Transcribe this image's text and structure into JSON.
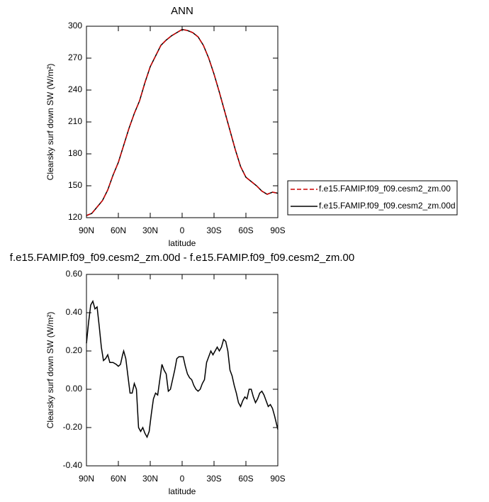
{
  "chart_data": [
    {
      "type": "line",
      "title": "ANN",
      "x_label": "latitude",
      "y_label": "Clearsky surf down SW (W/m²)",
      "xlim": [
        90,
        -90
      ],
      "xticks": [
        {
          "value": 90,
          "label": "90N"
        },
        {
          "value": 60,
          "label": "60N"
        },
        {
          "value": 30,
          "label": "30N"
        },
        0,
        {
          "value": -30,
          "label": "30S"
        },
        {
          "value": -60,
          "label": "60S"
        },
        {
          "value": -90,
          "label": "90S"
        }
      ],
      "ylim": [
        120,
        300
      ],
      "yticks": [
        120,
        150,
        180,
        210,
        240,
        270,
        300
      ],
      "legend": "right",
      "x": [
        90,
        85,
        80,
        75,
        70,
        65,
        60,
        55,
        50,
        45,
        40,
        35,
        30,
        25,
        20,
        15,
        10,
        5,
        0,
        -5,
        -10,
        -15,
        -20,
        -25,
        -30,
        -35,
        -40,
        -45,
        -50,
        -55,
        -60,
        -65,
        -70,
        -75,
        -80,
        -85,
        -90
      ],
      "series": [
        {
          "name": "f.e15.FAMIP.f09_f09.cesm2_zm.00",
          "color": "#cc0000",
          "dashed": true,
          "values": [
            122,
            124,
            130,
            136,
            146,
            160,
            172,
            188,
            204,
            218,
            230,
            247,
            262,
            272,
            282,
            287,
            291,
            294,
            297,
            296,
            294,
            290,
            282,
            270,
            255,
            238,
            220,
            202,
            184,
            168,
            158,
            154,
            150,
            145,
            142,
            144,
            143
          ]
        },
        {
          "name": "f.e15.FAMIP.f09_f09.cesm2_zm.00d",
          "color": "#000000",
          "dashed": false,
          "values": [
            122,
            124,
            130,
            136,
            146,
            160,
            172,
            188,
            204,
            218,
            230,
            247,
            262,
            272,
            282,
            287,
            291,
            294,
            297,
            296,
            294,
            290,
            282,
            270,
            255,
            238,
            220,
            202,
            184,
            168,
            158,
            154,
            150,
            145,
            142,
            144,
            143
          ]
        }
      ]
    },
    {
      "type": "line",
      "title": "f.e15.FAMIP.f09_f09.cesm2_zm.00d - f.e15.FAMIP.f09_f09.cesm2_zm.00",
      "x_label": "latitude",
      "y_label": "Clearsky surf down SW (W/m²)",
      "xlim": [
        90,
        -90
      ],
      "xticks": [
        {
          "value": 90,
          "label": "90N"
        },
        {
          "value": 60,
          "label": "60N"
        },
        {
          "value": 30,
          "label": "30N"
        },
        0,
        {
          "value": -30,
          "label": "30S"
        },
        {
          "value": -60,
          "label": "60S"
        },
        {
          "value": -90,
          "label": "90S"
        }
      ],
      "ylim": [
        -0.4,
        0.6
      ],
      "yticks": [
        {
          "value": -0.4,
          "label": "-0.40"
        },
        {
          "value": -0.2,
          "label": "-0.20"
        },
        {
          "value": 0,
          "label": "0.00"
        },
        {
          "value": 0.2,
          "label": "0.20"
        },
        {
          "value": 0.4,
          "label": "0.40"
        },
        {
          "value": 0.6,
          "label": "0.60"
        }
      ],
      "x": [
        90,
        88,
        86,
        84,
        82,
        80,
        78,
        76,
        74,
        72,
        70,
        68,
        65,
        62,
        60,
        58,
        56,
        55,
        53,
        51,
        49,
        47,
        45,
        43,
        41,
        39,
        37,
        35,
        33,
        31,
        29,
        27,
        25,
        23,
        21,
        19,
        17,
        15,
        13,
        11,
        9,
        7,
        5,
        3,
        1,
        -1,
        -3,
        -5,
        -7,
        -9,
        -11,
        -13,
        -15,
        -17,
        -19,
        -21,
        -23,
        -25,
        -27,
        -29,
        -31,
        -33,
        -35,
        -37,
        -39,
        -41,
        -43,
        -45,
        -47,
        -49,
        -51,
        -53,
        -55,
        -57,
        -59,
        -61,
        -63,
        -65,
        -67,
        -69,
        -71,
        -73,
        -75,
        -77,
        -79,
        -81,
        -83,
        -85,
        -87,
        -90
      ],
      "series": [
        {
          "name": null,
          "color": "#000000",
          "dashed": false,
          "values": [
            0.24,
            0.35,
            0.44,
            0.46,
            0.42,
            0.43,
            0.33,
            0.22,
            0.15,
            0.16,
            0.18,
            0.14,
            0.14,
            0.13,
            0.12,
            0.13,
            0.18,
            0.2,
            0.16,
            0.07,
            -0.02,
            -0.02,
            0.03,
            0.0,
            -0.2,
            -0.22,
            -0.2,
            -0.23,
            -0.25,
            -0.22,
            -0.13,
            -0.05,
            -0.02,
            -0.03,
            0.05,
            0.13,
            0.1,
            0.08,
            -0.01,
            0.0,
            0.05,
            0.1,
            0.16,
            0.17,
            0.17,
            0.17,
            0.12,
            0.08,
            0.06,
            0.05,
            0.02,
            0.0,
            -0.01,
            0.0,
            0.03,
            0.05,
            0.14,
            0.17,
            0.2,
            0.18,
            0.2,
            0.22,
            0.2,
            0.22,
            0.26,
            0.25,
            0.2,
            0.1,
            0.07,
            0.02,
            -0.02,
            -0.07,
            -0.09,
            -0.06,
            -0.04,
            -0.05,
            0.0,
            0.0,
            -0.04,
            -0.07,
            -0.05,
            -0.02,
            -0.01,
            -0.03,
            -0.06,
            -0.09,
            -0.08,
            -0.1,
            -0.14,
            -0.21
          ]
        }
      ]
    }
  ]
}
